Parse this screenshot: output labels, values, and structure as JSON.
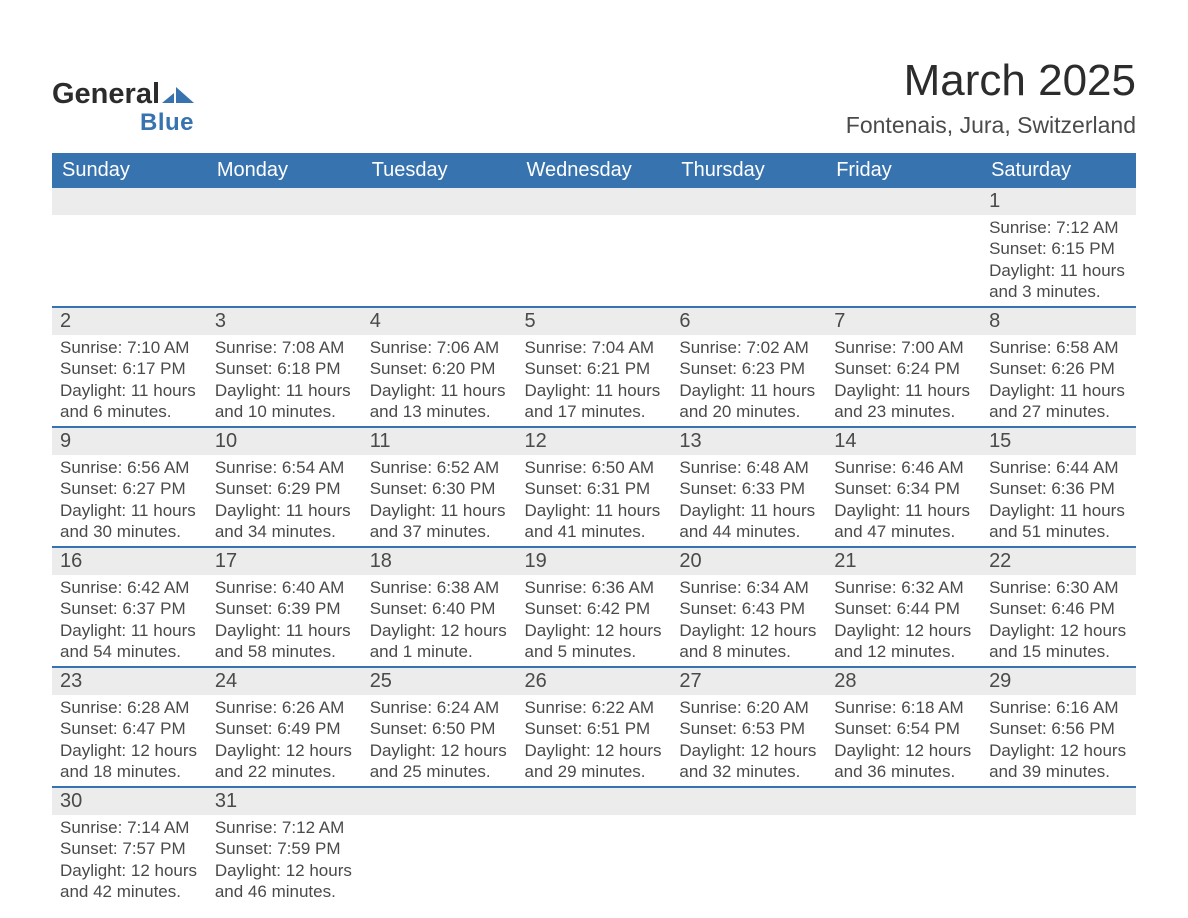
{
  "brand": {
    "text1": "General",
    "text2": "Blue",
    "triangle_color": "#3773ae"
  },
  "title": "March 2025",
  "location": "Fontenais, Jura, Switzerland",
  "colors": {
    "header_bg": "#3773ae",
    "header_text": "#ffffff",
    "daynum_bg": "#ececec",
    "row_border": "#3773ae",
    "text": "#4a4a4a",
    "page_bg": "#ffffff"
  },
  "weekdays": [
    "Sunday",
    "Monday",
    "Tuesday",
    "Wednesday",
    "Thursday",
    "Friday",
    "Saturday"
  ],
  "weeks": [
    [
      null,
      null,
      null,
      null,
      null,
      null,
      {
        "d": "1",
        "sr": "Sunrise: 7:12 AM",
        "ss": "Sunset: 6:15 PM",
        "dl1": "Daylight: 11 hours",
        "dl2": "and 3 minutes."
      }
    ],
    [
      {
        "d": "2",
        "sr": "Sunrise: 7:10 AM",
        "ss": "Sunset: 6:17 PM",
        "dl1": "Daylight: 11 hours",
        "dl2": "and 6 minutes."
      },
      {
        "d": "3",
        "sr": "Sunrise: 7:08 AM",
        "ss": "Sunset: 6:18 PM",
        "dl1": "Daylight: 11 hours",
        "dl2": "and 10 minutes."
      },
      {
        "d": "4",
        "sr": "Sunrise: 7:06 AM",
        "ss": "Sunset: 6:20 PM",
        "dl1": "Daylight: 11 hours",
        "dl2": "and 13 minutes."
      },
      {
        "d": "5",
        "sr": "Sunrise: 7:04 AM",
        "ss": "Sunset: 6:21 PM",
        "dl1": "Daylight: 11 hours",
        "dl2": "and 17 minutes."
      },
      {
        "d": "6",
        "sr": "Sunrise: 7:02 AM",
        "ss": "Sunset: 6:23 PM",
        "dl1": "Daylight: 11 hours",
        "dl2": "and 20 minutes."
      },
      {
        "d": "7",
        "sr": "Sunrise: 7:00 AM",
        "ss": "Sunset: 6:24 PM",
        "dl1": "Daylight: 11 hours",
        "dl2": "and 23 minutes."
      },
      {
        "d": "8",
        "sr": "Sunrise: 6:58 AM",
        "ss": "Sunset: 6:26 PM",
        "dl1": "Daylight: 11 hours",
        "dl2": "and 27 minutes."
      }
    ],
    [
      {
        "d": "9",
        "sr": "Sunrise: 6:56 AM",
        "ss": "Sunset: 6:27 PM",
        "dl1": "Daylight: 11 hours",
        "dl2": "and 30 minutes."
      },
      {
        "d": "10",
        "sr": "Sunrise: 6:54 AM",
        "ss": "Sunset: 6:29 PM",
        "dl1": "Daylight: 11 hours",
        "dl2": "and 34 minutes."
      },
      {
        "d": "11",
        "sr": "Sunrise: 6:52 AM",
        "ss": "Sunset: 6:30 PM",
        "dl1": "Daylight: 11 hours",
        "dl2": "and 37 minutes."
      },
      {
        "d": "12",
        "sr": "Sunrise: 6:50 AM",
        "ss": "Sunset: 6:31 PM",
        "dl1": "Daylight: 11 hours",
        "dl2": "and 41 minutes."
      },
      {
        "d": "13",
        "sr": "Sunrise: 6:48 AM",
        "ss": "Sunset: 6:33 PM",
        "dl1": "Daylight: 11 hours",
        "dl2": "and 44 minutes."
      },
      {
        "d": "14",
        "sr": "Sunrise: 6:46 AM",
        "ss": "Sunset: 6:34 PM",
        "dl1": "Daylight: 11 hours",
        "dl2": "and 47 minutes."
      },
      {
        "d": "15",
        "sr": "Sunrise: 6:44 AM",
        "ss": "Sunset: 6:36 PM",
        "dl1": "Daylight: 11 hours",
        "dl2": "and 51 minutes."
      }
    ],
    [
      {
        "d": "16",
        "sr": "Sunrise: 6:42 AM",
        "ss": "Sunset: 6:37 PM",
        "dl1": "Daylight: 11 hours",
        "dl2": "and 54 minutes."
      },
      {
        "d": "17",
        "sr": "Sunrise: 6:40 AM",
        "ss": "Sunset: 6:39 PM",
        "dl1": "Daylight: 11 hours",
        "dl2": "and 58 minutes."
      },
      {
        "d": "18",
        "sr": "Sunrise: 6:38 AM",
        "ss": "Sunset: 6:40 PM",
        "dl1": "Daylight: 12 hours",
        "dl2": "and 1 minute."
      },
      {
        "d": "19",
        "sr": "Sunrise: 6:36 AM",
        "ss": "Sunset: 6:42 PM",
        "dl1": "Daylight: 12 hours",
        "dl2": "and 5 minutes."
      },
      {
        "d": "20",
        "sr": "Sunrise: 6:34 AM",
        "ss": "Sunset: 6:43 PM",
        "dl1": "Daylight: 12 hours",
        "dl2": "and 8 minutes."
      },
      {
        "d": "21",
        "sr": "Sunrise: 6:32 AM",
        "ss": "Sunset: 6:44 PM",
        "dl1": "Daylight: 12 hours",
        "dl2": "and 12 minutes."
      },
      {
        "d": "22",
        "sr": "Sunrise: 6:30 AM",
        "ss": "Sunset: 6:46 PM",
        "dl1": "Daylight: 12 hours",
        "dl2": "and 15 minutes."
      }
    ],
    [
      {
        "d": "23",
        "sr": "Sunrise: 6:28 AM",
        "ss": "Sunset: 6:47 PM",
        "dl1": "Daylight: 12 hours",
        "dl2": "and 18 minutes."
      },
      {
        "d": "24",
        "sr": "Sunrise: 6:26 AM",
        "ss": "Sunset: 6:49 PM",
        "dl1": "Daylight: 12 hours",
        "dl2": "and 22 minutes."
      },
      {
        "d": "25",
        "sr": "Sunrise: 6:24 AM",
        "ss": "Sunset: 6:50 PM",
        "dl1": "Daylight: 12 hours",
        "dl2": "and 25 minutes."
      },
      {
        "d": "26",
        "sr": "Sunrise: 6:22 AM",
        "ss": "Sunset: 6:51 PM",
        "dl1": "Daylight: 12 hours",
        "dl2": "and 29 minutes."
      },
      {
        "d": "27",
        "sr": "Sunrise: 6:20 AM",
        "ss": "Sunset: 6:53 PM",
        "dl1": "Daylight: 12 hours",
        "dl2": "and 32 minutes."
      },
      {
        "d": "28",
        "sr": "Sunrise: 6:18 AM",
        "ss": "Sunset: 6:54 PM",
        "dl1": "Daylight: 12 hours",
        "dl2": "and 36 minutes."
      },
      {
        "d": "29",
        "sr": "Sunrise: 6:16 AM",
        "ss": "Sunset: 6:56 PM",
        "dl1": "Daylight: 12 hours",
        "dl2": "and 39 minutes."
      }
    ],
    [
      {
        "d": "30",
        "sr": "Sunrise: 7:14 AM",
        "ss": "Sunset: 7:57 PM",
        "dl1": "Daylight: 12 hours",
        "dl2": "and 42 minutes."
      },
      {
        "d": "31",
        "sr": "Sunrise: 7:12 AM",
        "ss": "Sunset: 7:59 PM",
        "dl1": "Daylight: 12 hours",
        "dl2": "and 46 minutes."
      },
      null,
      null,
      null,
      null,
      null
    ]
  ]
}
